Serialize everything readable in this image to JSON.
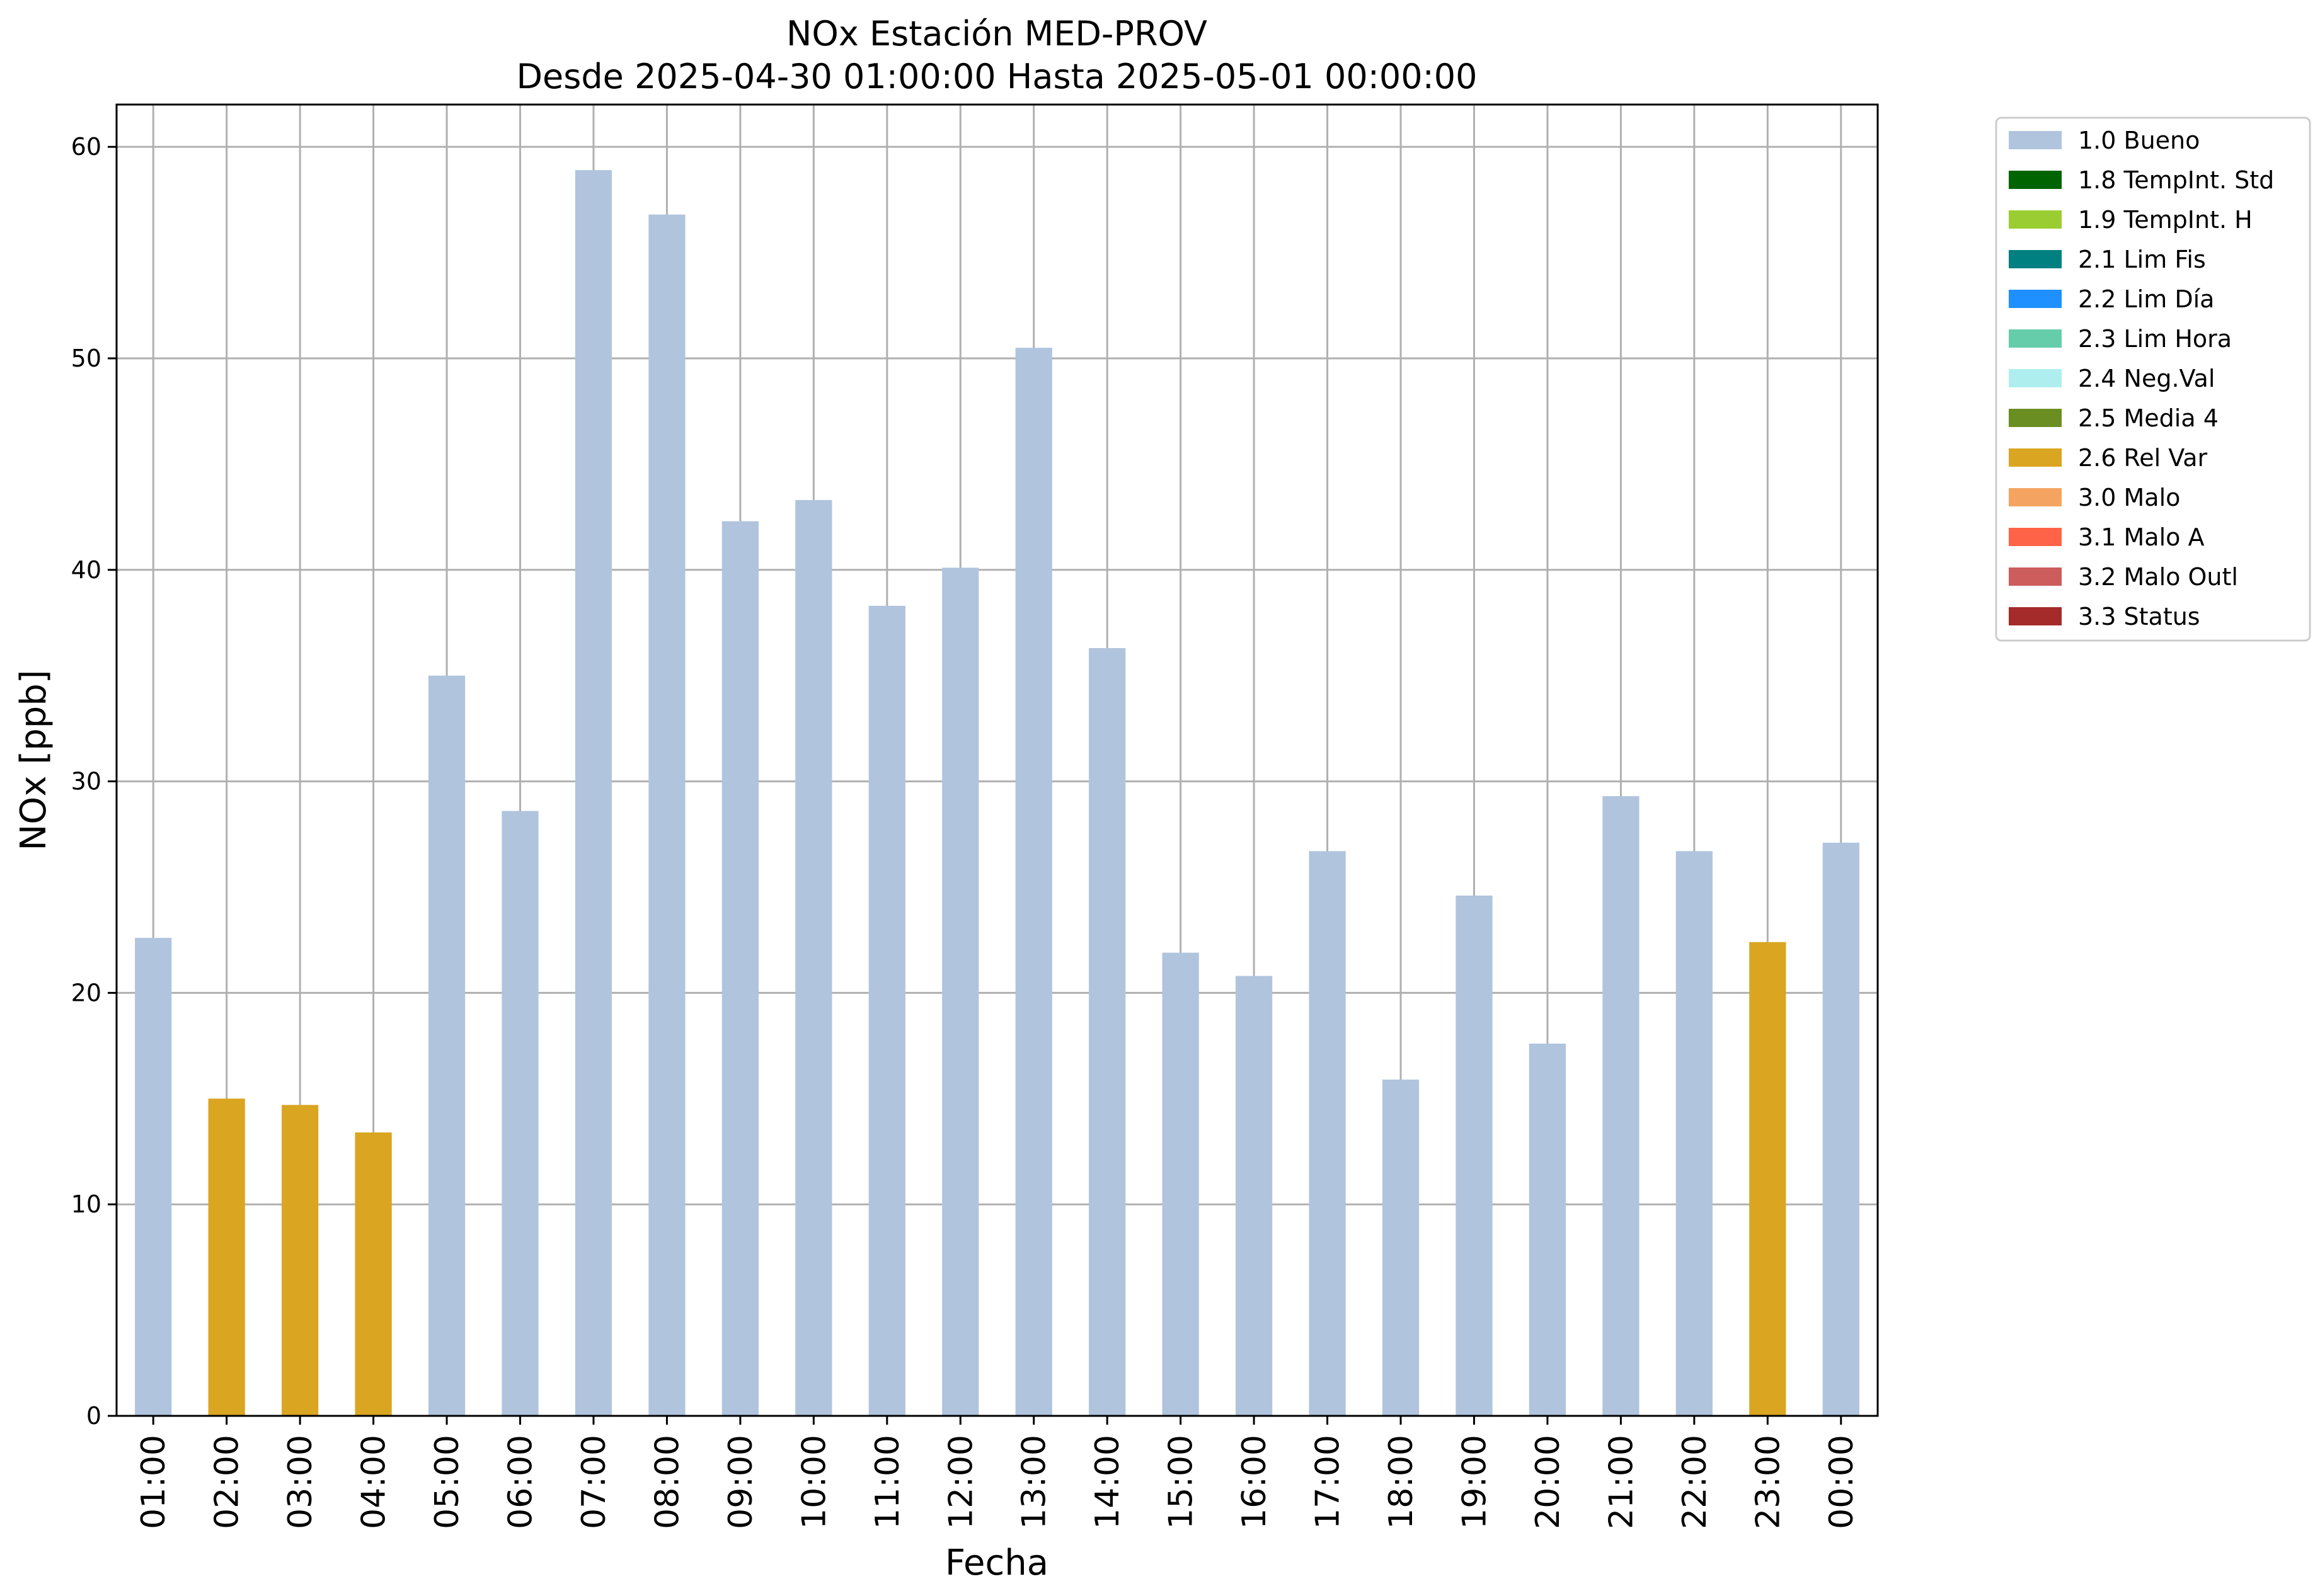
{
  "chart_data": {
    "type": "bar",
    "title": "NOx Estación MED-PROV",
    "subtitle": "Desde 2025-04-30 01:00:00 Hasta 2025-05-01 00:00:00",
    "xlabel": "Fecha",
    "ylabel": "NOx [ppb]",
    "ylim": [
      0,
      62
    ],
    "yticks": [
      0,
      10,
      20,
      30,
      40,
      50,
      60
    ],
    "grid": true,
    "legend_position": "outside-top-right",
    "categories": [
      "01:00",
      "02:00",
      "03:00",
      "04:00",
      "05:00",
      "06:00",
      "07:00",
      "08:00",
      "09:00",
      "10:00",
      "11:00",
      "12:00",
      "13:00",
      "14:00",
      "15:00",
      "16:00",
      "17:00",
      "18:00",
      "19:00",
      "20:00",
      "21:00",
      "22:00",
      "23:00",
      "00:00"
    ],
    "values": [
      22.6,
      15.0,
      14.7,
      13.4,
      35.0,
      28.6,
      58.9,
      56.8,
      42.3,
      43.3,
      38.3,
      40.1,
      50.5,
      36.3,
      21.9,
      20.8,
      26.7,
      15.9,
      24.6,
      17.6,
      29.3,
      26.7,
      22.4,
      27.1
    ],
    "flags": [
      "1.0 Bueno",
      "2.6 Rel Var",
      "2.6 Rel Var",
      "2.6 Rel Var",
      "1.0 Bueno",
      "1.0 Bueno",
      "1.0 Bueno",
      "1.0 Bueno",
      "1.0 Bueno",
      "1.0 Bueno",
      "1.0 Bueno",
      "1.0 Bueno",
      "1.0 Bueno",
      "1.0 Bueno",
      "1.0 Bueno",
      "1.0 Bueno",
      "1.0 Bueno",
      "1.0 Bueno",
      "1.0 Bueno",
      "1.0 Bueno",
      "1.0 Bueno",
      "1.0 Bueno",
      "2.6 Rel Var",
      "1.0 Bueno"
    ],
    "legend": [
      {
        "label": "1.0 Bueno",
        "color": "#b0c4de"
      },
      {
        "label": "1.8 TempInt. Std",
        "color": "#006400"
      },
      {
        "label": "1.9 TempInt. H",
        "color": "#9acd32"
      },
      {
        "label": "2.1 Lim Fis",
        "color": "#008080"
      },
      {
        "label": "2.2 Lim Día",
        "color": "#1e90ff"
      },
      {
        "label": "2.3 Lim Hora",
        "color": "#66cdaa"
      },
      {
        "label": "2.4 Neg.Val",
        "color": "#afeeee"
      },
      {
        "label": "2.5 Media 4",
        "color": "#6b8e23"
      },
      {
        "label": "2.6 Rel Var",
        "color": "#daa520"
      },
      {
        "label": "3.0 Malo",
        "color": "#f4a460"
      },
      {
        "label": "3.1 Malo A",
        "color": "#ff6347"
      },
      {
        "label": "3.2 Malo Outl",
        "color": "#cd5c5c"
      },
      {
        "label": "3.3 Status",
        "color": "#a52a2a"
      }
    ]
  }
}
